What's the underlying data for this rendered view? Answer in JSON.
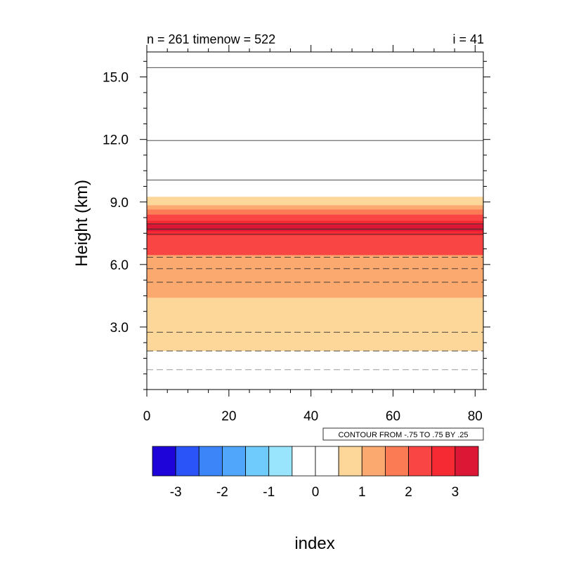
{
  "title_left": "n = 261 timenow = 522",
  "title_right": "i = 41",
  "chart_data": {
    "type": "heatmap",
    "title": "",
    "xlabel": "",
    "ylabel": "Height (km)",
    "xlim": [
      0,
      82
    ],
    "ylim": [
      0,
      16.2
    ],
    "x_ticks": [
      0,
      20,
      40,
      60,
      80
    ],
    "x_tick_labels": [
      "0",
      "20",
      "40",
      "60",
      "80"
    ],
    "y_ticks": [
      3.0,
      6.0,
      9.0,
      12.0,
      15.0
    ],
    "y_tick_labels": [
      "3.0",
      "6.0",
      "9.0",
      "12.0",
      "15.0"
    ],
    "grid": false,
    "bands": [
      {
        "y0": 1.85,
        "y1": 4.4,
        "color": "#fdd69a"
      },
      {
        "y0": 4.4,
        "y1": 6.45,
        "color": "#fca96f"
      },
      {
        "y0": 6.45,
        "y1": 8.4,
        "color": "#fa4545"
      },
      {
        "y0": 7.4,
        "y1": 8.1,
        "color": "#f52a33"
      },
      {
        "y0": 7.6,
        "y1": 7.95,
        "color": "#dc1735"
      },
      {
        "y0": 8.4,
        "y1": 8.65,
        "color": "#fb7b54"
      },
      {
        "y0": 8.65,
        "y1": 8.85,
        "color": "#fca96f"
      },
      {
        "y0": 8.85,
        "y1": 9.25,
        "color": "#fdd69a"
      }
    ],
    "contours_solid": [
      15.45,
      11.95,
      10.05,
      7.45,
      7.7,
      7.95
    ],
    "contours_dashed_dark": [
      6.35,
      5.8,
      5.15,
      2.75,
      1.85
    ],
    "contours_dashed_light": [
      0.95
    ],
    "contour_info": "CONTOUR FROM -.75 TO .75 BY .25",
    "colorbar": {
      "colors": [
        "#1e04d8",
        "#2a53f8",
        "#3b85f9",
        "#4fa6fa",
        "#6ecbfb",
        "#99e5fd",
        "#ffffff",
        "#ffffff",
        "#fdd69a",
        "#fca96f",
        "#fb7b54",
        "#fa4545",
        "#f52a33",
        "#dc1735"
      ],
      "labels": [
        "-3",
        "-2",
        "-1",
        "0",
        "1",
        "2",
        "3"
      ],
      "label_boundaries": [
        1,
        3,
        5,
        7,
        9,
        11,
        13
      ]
    },
    "colorbar_title": "index"
  }
}
